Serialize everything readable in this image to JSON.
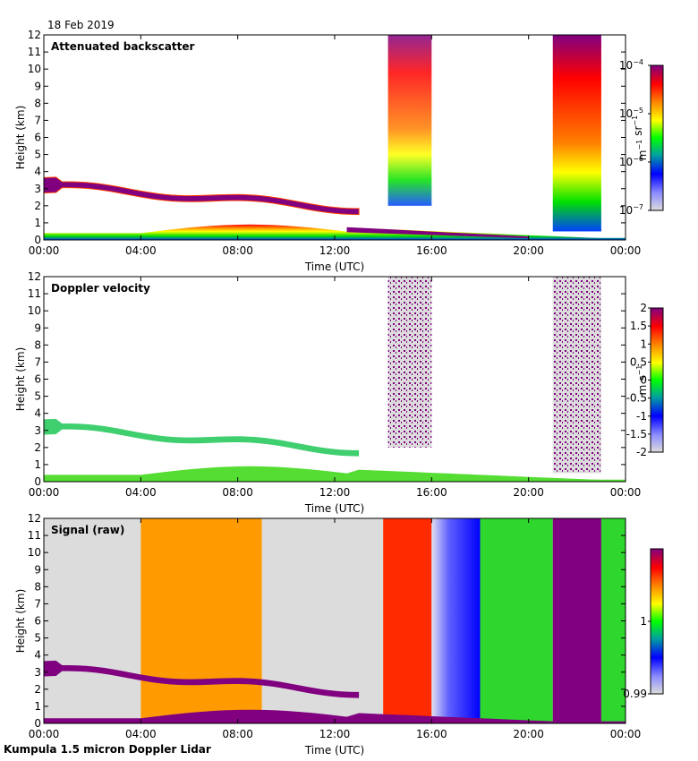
{
  "date_label": "18 Feb 2019",
  "footer": "Kumpula 1.5 micron Doppler Lidar",
  "chart_data": [
    {
      "type": "heatmap",
      "title": "Attenuated backscatter",
      "xlabel": "Time (UTC)",
      "ylabel": "Height (km)",
      "xlim_hours": [
        0,
        24
      ],
      "ylim": [
        0,
        12
      ],
      "x_tick_labels": [
        "00:00",
        "04:00",
        "08:00",
        "12:00",
        "16:00",
        "20:00",
        "00:00"
      ],
      "y_tick_labels": [
        "0",
        "1",
        "2",
        "3",
        "4",
        "5",
        "6",
        "7",
        "8",
        "9",
        "10",
        "11",
        "12"
      ],
      "colorbar": {
        "label": "m-1 sr-1",
        "scale": "log",
        "range": [
          1e-07,
          0.0001
        ],
        "tick_labels": [
          "10-7",
          "10-6",
          "10-5",
          "10-4"
        ],
        "colormap": "rainbow"
      },
      "features": [
        {
          "name": "boundary layer",
          "t_start": 0,
          "t_end": 24,
          "h_base": 0,
          "h_top_start": 0.4,
          "h_top_peak": 0.9,
          "level": "green-yellow, red near surface"
        },
        {
          "name": "cloud layer",
          "t_start": 0,
          "t_end": 13,
          "h_start": 3.2,
          "h_end": 1.8,
          "level": "purple (strong)"
        },
        {
          "name": "descending layer",
          "t_start": 12.5,
          "t_end": 20,
          "h_start": 0.6,
          "h_end": 0.1,
          "level": "purple"
        },
        {
          "name": "noise block 1",
          "t_start": 14.2,
          "t_end": 16,
          "h_base": 2.0,
          "h_top": 12,
          "level": "red top, green bottom"
        },
        {
          "name": "noise block 2",
          "t_start": 21,
          "t_end": 23,
          "h_base": 0.5,
          "h_top": 12,
          "level": "purple top to blue bottom"
        }
      ]
    },
    {
      "type": "heatmap",
      "title": "Doppler velocity",
      "xlabel": "Time (UTC)",
      "ylabel": "Height (km)",
      "xlim_hours": [
        0,
        24
      ],
      "ylim": [
        0,
        12
      ],
      "x_tick_labels": [
        "00:00",
        "04:00",
        "08:00",
        "12:00",
        "16:00",
        "20:00",
        "00:00"
      ],
      "y_tick_labels": [
        "0",
        "1",
        "2",
        "3",
        "4",
        "5",
        "6",
        "7",
        "8",
        "9",
        "10",
        "11",
        "12"
      ],
      "colorbar": {
        "label": "m s-1",
        "scale": "linear",
        "range": [
          -2,
          2
        ],
        "tick_labels": [
          "-2",
          "-1.5",
          "-1",
          "-0.5",
          "0",
          "0.5",
          "1",
          "1.5",
          "2"
        ],
        "colormap": "rainbow"
      },
      "features": [
        {
          "name": "boundary layer",
          "t_start": 0,
          "t_end": 24,
          "h_base": 0,
          "h_top_start": 0.4,
          "h_top_peak": 0.9,
          "level": "green (~0)"
        },
        {
          "name": "cloud layer",
          "t_start": 0,
          "t_end": 13,
          "h_start": 3.2,
          "h_end": 1.8,
          "level": "green/blue (~0 to -1)"
        },
        {
          "name": "noise block 1",
          "t_start": 14.2,
          "t_end": 16,
          "h_base": 2.0,
          "h_top": 12,
          "level": "grey/purple speckle"
        },
        {
          "name": "noise block 2",
          "t_start": 21,
          "t_end": 23,
          "h_base": 0.5,
          "h_top": 12,
          "level": "grey/purple speckle"
        }
      ]
    },
    {
      "type": "heatmap",
      "title": "Signal (raw)",
      "xlabel": "Time (UTC)",
      "ylabel": "Height (km)",
      "xlim_hours": [
        0,
        24
      ],
      "ylim": [
        0,
        12
      ],
      "x_tick_labels": [
        "00:00",
        "04:00",
        "08:00",
        "12:00",
        "16:00",
        "20:00",
        "00:00"
      ],
      "y_tick_labels": [
        "0",
        "1",
        "2",
        "3",
        "4",
        "5",
        "6",
        "7",
        "8",
        "9",
        "10",
        "11",
        "12"
      ],
      "colorbar": {
        "label": "",
        "scale": "linear",
        "range": [
          0.99,
          1.01
        ],
        "tick_labels": [
          "0.99",
          "1"
        ],
        "colormap": "rainbow"
      },
      "background_blocks": [
        {
          "t_start": 0,
          "t_end": 4,
          "level": "grey"
        },
        {
          "t_start": 4,
          "t_end": 9,
          "level": "orange-red"
        },
        {
          "t_start": 9,
          "t_end": 14,
          "level": "grey"
        },
        {
          "t_start": 14,
          "t_end": 16,
          "level": "red"
        },
        {
          "t_start": 16,
          "t_end": 18,
          "level": "blue-white"
        },
        {
          "t_start": 18,
          "t_end": 21,
          "level": "green"
        },
        {
          "t_start": 21,
          "t_end": 23,
          "level": "purple"
        },
        {
          "t_start": 23,
          "t_end": 24,
          "level": "green"
        }
      ],
      "features": [
        {
          "name": "cloud layer",
          "t_start": 0,
          "t_end": 13,
          "h_start": 3.2,
          "h_end": 1.8,
          "level": "purple"
        },
        {
          "name": "near-surface layer",
          "t_start": 0,
          "t_end": 24,
          "h_base": 0,
          "h_top_start": 0.3,
          "h_top_peak": 0.8,
          "level": "purple"
        }
      ]
    }
  ]
}
